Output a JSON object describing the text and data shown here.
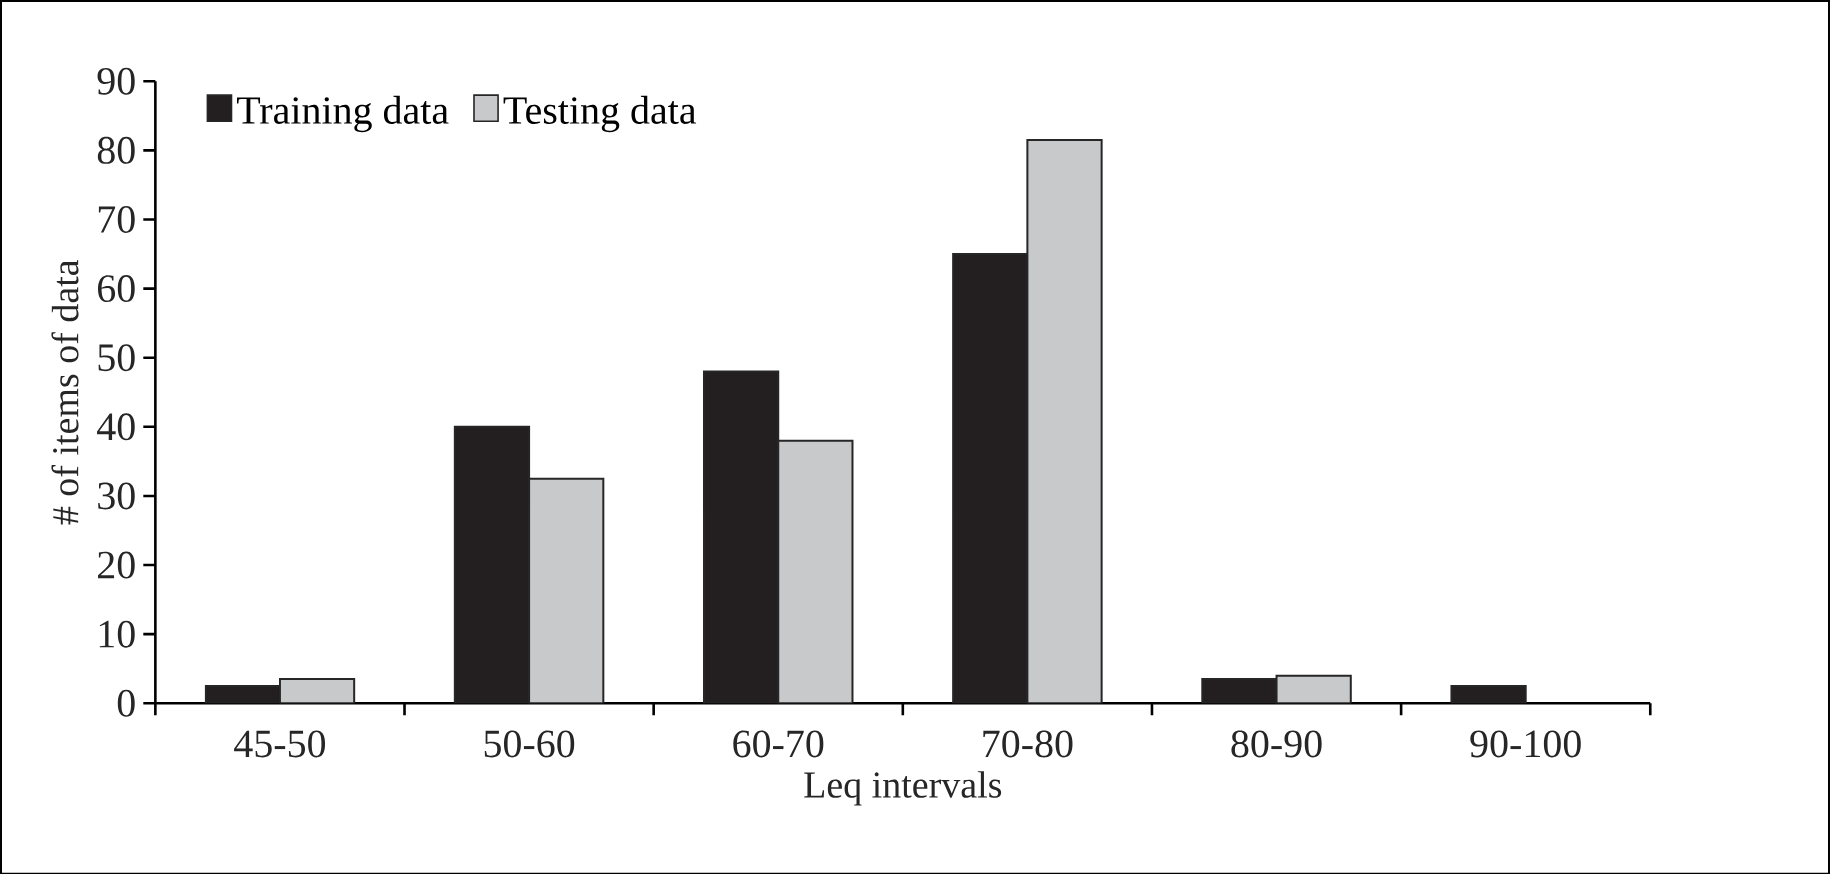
{
  "chart_data": {
    "type": "bar",
    "xlabel": "Leq intervals",
    "ylabel": "# of items of data",
    "categories": [
      "45-50",
      "50-60",
      "60-70",
      "70-80",
      "80-90",
      "90-100"
    ],
    "series": [
      {
        "name": "Training data",
        "color": "#231f20",
        "values": [
          2.5,
          40,
          48,
          65,
          3.5,
          2.5
        ]
      },
      {
        "name": "Testing data",
        "color": "#c8c9cb",
        "values": [
          3.5,
          32.5,
          38,
          81.5,
          4,
          null
        ]
      }
    ],
    "ylim": [
      0,
      90
    ],
    "yticks": [
      0,
      10,
      20,
      30,
      40,
      50,
      60,
      70,
      80,
      90
    ],
    "grid": false,
    "legend": "top left"
  }
}
